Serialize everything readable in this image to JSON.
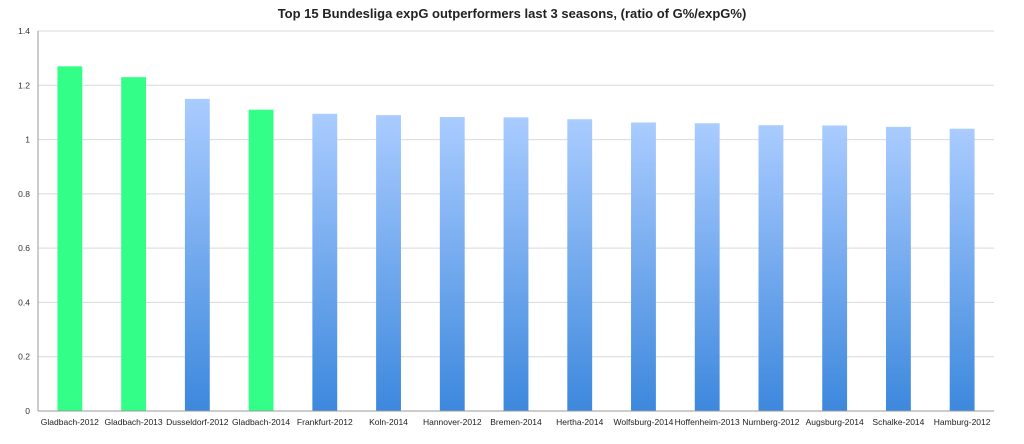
{
  "chart_data": {
    "type": "bar",
    "title": "Top 15 Bundesliga expG outperformers last 3 seasons, (ratio of G%/expG%)",
    "xlabel": "",
    "ylabel": "",
    "ylim": [
      0,
      1.4
    ],
    "yticks": [
      "0",
      "0.2",
      "0.4",
      "0.6",
      "0.8",
      "1",
      "1.2",
      "1.4"
    ],
    "grid": true,
    "legend": "none",
    "categories": [
      "Gladbach-2012",
      "Gladbach-2013",
      "Dusseldorf-2012",
      "Gladbach-2014",
      "Frankfurt-2012",
      "Koln-2014",
      "Hannover-2012",
      "Bremen-2014",
      "Hertha-2014",
      "Wolfsburg-2014",
      "Hoffenheim-2013",
      "Nurnberg-2012",
      "Augsburg-2014",
      "Schalke-2014",
      "Hamburg-2012"
    ],
    "values": [
      1.27,
      1.23,
      1.15,
      1.11,
      1.095,
      1.09,
      1.083,
      1.082,
      1.075,
      1.063,
      1.06,
      1.053,
      1.052,
      1.047,
      1.04
    ],
    "highlighted": [
      true,
      true,
      false,
      true,
      false,
      false,
      false,
      false,
      false,
      false,
      false,
      false,
      false,
      false,
      false
    ],
    "colors": {
      "highlight": "#33ff88",
      "bar_top": "#aaccff",
      "bar_bottom": "#3d88dd",
      "grid": "#d9d9d9",
      "axis": "#999999"
    }
  }
}
